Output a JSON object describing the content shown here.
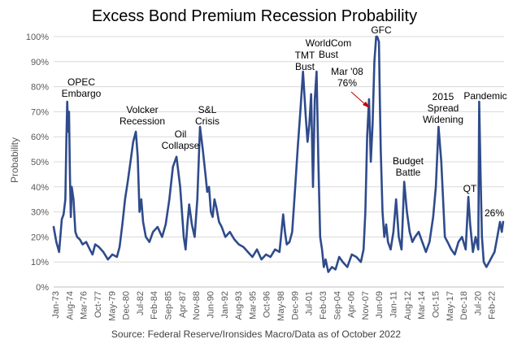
{
  "chart_data": {
    "type": "line",
    "title": "Excess Bond Premium Recession Probability",
    "ylabel": "Probability",
    "xlabel": "",
    "source": "Source: Federal Reserve/Ironsides Macro/Data as of October 2022",
    "ylim": [
      0,
      100
    ],
    "y_ticks": [
      "0%",
      "10%",
      "20%",
      "30%",
      "40%",
      "50%",
      "60%",
      "70%",
      "80%",
      "90%",
      "100%"
    ],
    "x_ticks": [
      "Jan-73",
      "Aug-74",
      "Mar-76",
      "Oct-77",
      "May-79",
      "Dec-80",
      "Jul-82",
      "Feb-84",
      "Sep-85",
      "Apr-87",
      "Nov-88",
      "Jun-90",
      "Jan-92",
      "Aug-93",
      "Mar-95",
      "Oct-96",
      "May-98",
      "Dec-99",
      "Jul-01",
      "Feb-03",
      "Sep-04",
      "Apr-06",
      "Nov-07",
      "Jun-09",
      "Jan-11",
      "Aug-12",
      "Mar-14",
      "Oct-15",
      "May-17",
      "Dec-18",
      "Jul-20",
      "Feb-22"
    ],
    "grid": true,
    "legend": "none",
    "series": [
      {
        "color": "#2f4b8c",
        "x": [
          1973.0,
          1973.3,
          1973.6,
          1973.9,
          1974.1,
          1974.3,
          1974.4,
          1974.5,
          1974.6,
          1974.7,
          1974.8,
          1974.9,
          1975.0,
          1975.2,
          1975.4,
          1975.6,
          1975.9,
          1976.2,
          1976.6,
          1977.0,
          1977.3,
          1977.6,
          1978.0,
          1978.5,
          1979.0,
          1979.5,
          1980.0,
          1980.3,
          1980.6,
          1980.9,
          1981.2,
          1981.5,
          1981.8,
          1982.1,
          1982.3,
          1982.5,
          1982.7,
          1982.9,
          1983.2,
          1983.6,
          1984.0,
          1984.5,
          1985.0,
          1985.4,
          1985.8,
          1986.2,
          1986.6,
          1987.0,
          1987.4,
          1987.6,
          1987.8,
          1988.0,
          1988.3,
          1988.6,
          1988.9,
          1989.2,
          1989.5,
          1989.8,
          1990.0,
          1990.2,
          1990.4,
          1990.6,
          1990.8,
          1991.0,
          1991.3,
          1991.6,
          1992.0,
          1992.5,
          1993.0,
          1993.5,
          1994.0,
          1994.5,
          1995.0,
          1995.5,
          1996.0,
          1996.5,
          1997.0,
          1997.5,
          1998.0,
          1998.4,
          1998.6,
          1998.8,
          1999.1,
          1999.4,
          1999.7,
          2000.0,
          2000.3,
          2000.6,
          2000.9,
          2001.1,
          2001.3,
          2001.5,
          2001.7,
          2001.9,
          2002.1,
          2002.3,
          2002.5,
          2002.7,
          2002.9,
          2003.1,
          2003.4,
          2003.8,
          2004.2,
          2004.6,
          2005.0,
          2005.5,
          2006.0,
          2006.5,
          2007.0,
          2007.3,
          2007.5,
          2007.7,
          2007.9,
          2008.1,
          2008.3,
          2008.5,
          2008.7,
          2008.8,
          2009.0,
          2009.1,
          2009.2,
          2009.4,
          2009.6,
          2009.8,
          2010.0,
          2010.3,
          2010.6,
          2010.9,
          2011.2,
          2011.5,
          2011.8,
          2012.1,
          2012.4,
          2012.7,
          2013.0,
          2013.4,
          2013.8,
          2014.2,
          2014.6,
          2015.0,
          2015.3,
          2015.6,
          2015.9,
          2016.1,
          2016.3,
          2016.6,
          2017.0,
          2017.4,
          2017.8,
          2018.2,
          2018.6,
          2018.9,
          2019.1,
          2019.4,
          2019.7,
          2020.0,
          2020.1,
          2020.25,
          2020.4,
          2020.6,
          2020.9,
          2021.2,
          2021.5,
          2021.8,
          2022.1,
          2022.4,
          2022.6,
          2022.75
        ],
        "y": [
          24,
          18,
          14,
          27,
          29,
          35,
          58,
          74,
          62,
          70,
          45,
          28,
          40,
          35,
          22,
          20,
          19,
          17,
          18,
          15,
          13,
          17,
          16,
          14,
          11,
          13,
          12,
          16,
          25,
          35,
          42,
          50,
          58,
          62,
          52,
          30,
          35,
          26,
          20,
          18,
          22,
          24,
          20,
          25,
          35,
          48,
          52,
          40,
          20,
          15,
          25,
          33,
          25,
          20,
          35,
          64,
          55,
          45,
          38,
          40,
          30,
          28,
          35,
          32,
          26,
          24,
          20,
          22,
          19,
          17,
          16,
          14,
          12,
          15,
          11,
          13,
          12,
          15,
          14,
          29,
          22,
          17,
          18,
          22,
          38,
          55,
          70,
          86,
          68,
          58,
          65,
          77,
          40,
          75,
          86,
          50,
          20,
          15,
          8,
          11,
          6,
          8,
          7,
          12,
          10,
          8,
          13,
          12,
          10,
          15,
          30,
          60,
          75,
          50,
          65,
          90,
          100,
          100,
          98,
          75,
          55,
          30,
          20,
          25,
          18,
          15,
          22,
          35,
          20,
          15,
          42,
          30,
          22,
          18,
          20,
          22,
          18,
          14,
          18,
          28,
          40,
          64,
          50,
          35,
          20,
          18,
          15,
          13,
          18,
          20,
          15,
          36,
          25,
          14,
          20,
          15,
          74,
          45,
          20,
          10,
          8,
          10,
          12,
          14,
          20,
          26,
          22,
          26
        ]
      }
    ],
    "annotations": [
      {
        "lines": [
          "OPEC",
          "Embargo"
        ],
        "x": 1974.6
      },
      {
        "lines": [
          "Volcker",
          "Recession"
        ],
        "x": 1982.1
      },
      {
        "lines": [
          "Oil",
          "Collapse"
        ],
        "x": 1986.5
      },
      {
        "lines": [
          "S&L",
          "Crisis"
        ],
        "x": 1989.6
      },
      {
        "lines": [
          "TMT",
          "Bust"
        ],
        "x": 2000.2
      },
      {
        "lines": [
          "WorldCom",
          "Bust"
        ],
        "x": 2002.3
      },
      {
        "lines": [
          "Mar '08",
          "76%"
        ],
        "x": 2007.0
      },
      {
        "lines": [
          "GFC"
        ],
        "x": 2008.8
      },
      {
        "lines": [
          "Budget",
          "Battle"
        ],
        "x": 2012.2
      },
      {
        "lines": [
          "2015",
          "Spread",
          "Widening"
        ],
        "x": 2016.0
      },
      {
        "lines": [
          "QT"
        ],
        "x": 2018.9
      },
      {
        "lines": [
          "Pandemic"
        ],
        "x": 2020.8
      },
      {
        "lines": [
          "26%"
        ],
        "x": 2022.6
      }
    ]
  }
}
